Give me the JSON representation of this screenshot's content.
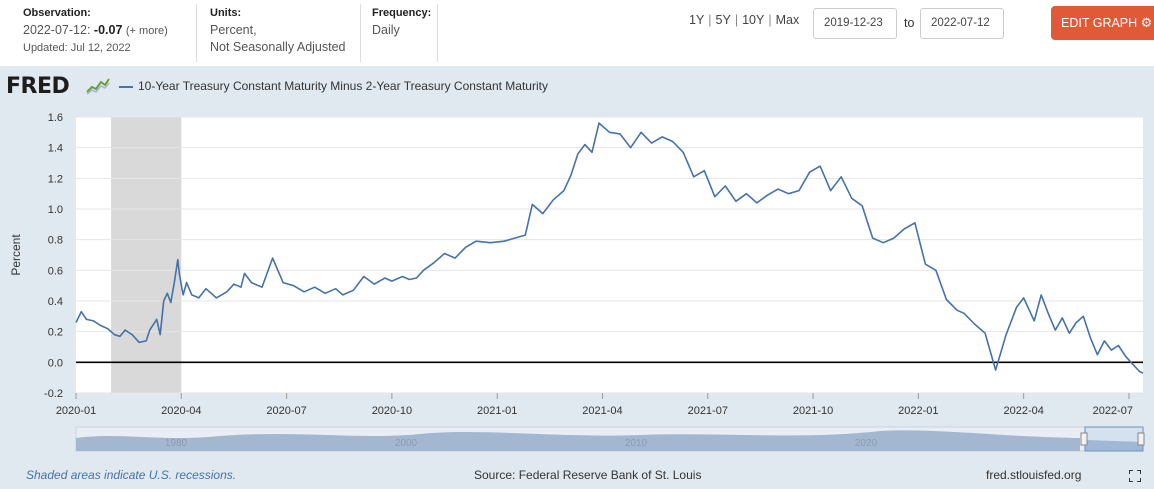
{
  "observation": {
    "label": "Observation:",
    "date": "2022-07-12:",
    "value": "-0.07",
    "more": "(+ more)",
    "updated": "Updated: Jul 12, 2022"
  },
  "units": {
    "label": "Units:",
    "line1": "Percent,",
    "line2": "Not Seasonally Adjusted"
  },
  "frequency": {
    "label": "Frequency:",
    "value": "Daily"
  },
  "ranges": [
    "1Y",
    "5Y",
    "10Y",
    "Max"
  ],
  "date_from": "2019-12-23",
  "date_to": "2022-07-12",
  "to_label": "to",
  "edit_graph": "EDIT GRAPH",
  "logo": "FRED",
  "footer": {
    "note": "Shaded areas indicate U.S. recessions.",
    "source": "Source: Federal Reserve Bank of St. Louis",
    "site": "fred.stlouisfed.org"
  },
  "colors": {
    "line": "#4572a7",
    "recession": "#d9d9d9",
    "zero_line": "#000000",
    "edit_button": "#e05a37"
  },
  "chart_data": {
    "type": "line",
    "title": "10-Year Treasury Constant Maturity Minus 2-Year Treasury Constant Maturity",
    "xlabel": "",
    "ylabel": "Percent",
    "ylim": [
      -0.2,
      1.6
    ],
    "yticks": [
      "1.6",
      "1.4",
      "1.2",
      "1.0",
      "0.8",
      "0.6",
      "0.4",
      "0.2",
      "0.0",
      "-0.2"
    ],
    "xticks": [
      "2020-01",
      "2020-04",
      "2020-07",
      "2020-10",
      "2021-01",
      "2021-04",
      "2021-07",
      "2021-10",
      "2022-01",
      "2022-04",
      "2022-07"
    ],
    "x_range_months": [
      0,
      30.4
    ],
    "recession": {
      "start_month": 1.0,
      "end_month": 3.0
    },
    "navigator_labels": [
      "1980",
      "2000",
      "2010",
      "2020"
    ],
    "series": [
      {
        "name": "10-Year Treasury Constant Maturity Minus 2-Year Treasury Constant Maturity",
        "x_months": [
          0.0,
          0.15,
          0.3,
          0.5,
          0.7,
          0.9,
          1.1,
          1.25,
          1.4,
          1.6,
          1.8,
          2.0,
          2.1,
          2.3,
          2.4,
          2.5,
          2.6,
          2.7,
          2.8,
          2.9,
          2.95,
          3.05,
          3.15,
          3.3,
          3.5,
          3.7,
          4.0,
          4.3,
          4.5,
          4.7,
          4.8,
          5.0,
          5.3,
          5.6,
          5.9,
          6.2,
          6.5,
          6.8,
          7.1,
          7.4,
          7.6,
          7.9,
          8.2,
          8.5,
          8.8,
          9.0,
          9.3,
          9.5,
          9.7,
          9.9,
          10.2,
          10.5,
          10.8,
          11.1,
          11.4,
          11.8,
          12.2,
          12.5,
          12.8,
          13.0,
          13.3,
          13.6,
          13.9,
          14.1,
          14.3,
          14.5,
          14.7,
          14.9,
          15.2,
          15.5,
          15.8,
          16.1,
          16.4,
          16.7,
          17.0,
          17.3,
          17.6,
          17.9,
          18.2,
          18.5,
          18.8,
          19.1,
          19.4,
          19.7,
          20.0,
          20.3,
          20.6,
          20.9,
          21.2,
          21.5,
          21.8,
          22.1,
          22.4,
          22.7,
          23.0,
          23.3,
          23.6,
          23.9,
          24.2,
          24.5,
          24.8,
          25.1,
          25.3,
          25.6,
          25.9,
          26.2,
          26.5,
          26.8,
          27.0,
          27.3,
          27.5,
          27.7,
          27.9,
          28.1,
          28.3,
          28.5,
          28.7,
          28.9,
          29.1,
          29.3,
          29.5,
          29.7,
          29.9,
          30.1,
          30.3,
          30.4
        ],
        "values": [
          0.26,
          0.33,
          0.28,
          0.27,
          0.24,
          0.22,
          0.18,
          0.17,
          0.21,
          0.18,
          0.13,
          0.14,
          0.21,
          0.28,
          0.18,
          0.4,
          0.45,
          0.39,
          0.52,
          0.67,
          0.57,
          0.44,
          0.52,
          0.44,
          0.42,
          0.48,
          0.42,
          0.46,
          0.51,
          0.49,
          0.58,
          0.52,
          0.49,
          0.68,
          0.52,
          0.5,
          0.46,
          0.49,
          0.45,
          0.48,
          0.44,
          0.47,
          0.56,
          0.51,
          0.55,
          0.53,
          0.56,
          0.54,
          0.55,
          0.6,
          0.65,
          0.71,
          0.68,
          0.75,
          0.79,
          0.78,
          0.79,
          0.81,
          0.83,
          1.03,
          0.97,
          1.06,
          1.12,
          1.22,
          1.36,
          1.42,
          1.37,
          1.56,
          1.5,
          1.49,
          1.4,
          1.5,
          1.43,
          1.47,
          1.44,
          1.37,
          1.21,
          1.25,
          1.08,
          1.15,
          1.05,
          1.1,
          1.04,
          1.09,
          1.13,
          1.1,
          1.12,
          1.24,
          1.28,
          1.12,
          1.21,
          1.07,
          1.02,
          0.81,
          0.78,
          0.81,
          0.87,
          0.91,
          0.64,
          0.6,
          0.41,
          0.34,
          0.32,
          0.25,
          0.19,
          -0.05,
          0.18,
          0.36,
          0.42,
          0.27,
          0.44,
          0.32,
          0.21,
          0.29,
          0.19,
          0.26,
          0.3,
          0.16,
          0.05,
          0.14,
          0.08,
          0.11,
          0.04,
          -0.01,
          -0.06,
          -0.07
        ]
      }
    ]
  }
}
